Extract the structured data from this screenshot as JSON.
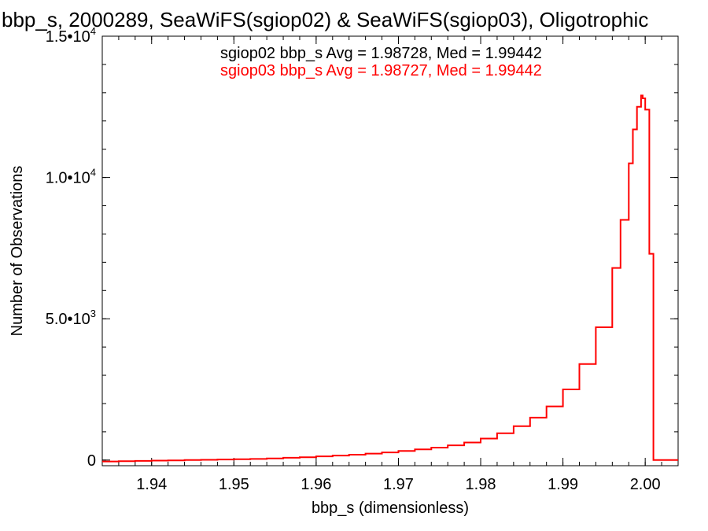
{
  "chart_data": {
    "type": "line",
    "title": "bbp_s, 2000289, SeaWiFS(sgiop02) & SeaWiFS(sgiop03), Oligotrophic",
    "xlabel": "bbp_s (dimensionless)",
    "ylabel": "Number of Observations",
    "xlim": [
      1.934,
      2.004
    ],
    "ylim": [
      -200,
      15000
    ],
    "x_ticks": [
      {
        "value": 1.94,
        "label": "1.94"
      },
      {
        "value": 1.95,
        "label": "1.95"
      },
      {
        "value": 1.96,
        "label": "1.96"
      },
      {
        "value": 1.97,
        "label": "1.97"
      },
      {
        "value": 1.98,
        "label": "1.98"
      },
      {
        "value": 1.99,
        "label": "1.99"
      },
      {
        "value": 2.0,
        "label": "2.00"
      }
    ],
    "y_ticks": [
      {
        "value": 0,
        "mantissa": "0",
        "exponent": ""
      },
      {
        "value": 5000,
        "mantissa": "5.0•10",
        "exponent": "3"
      },
      {
        "value": 10000,
        "mantissa": "1.0•10",
        "exponent": "4"
      },
      {
        "value": 15000,
        "mantissa": "1.5•10",
        "exponent": "4"
      }
    ],
    "annotations": [
      {
        "text": "sgiop02 bbp_s Avg = 1.98728, Med = 1.99442",
        "color": "#000000"
      },
      {
        "text": "sgiop03 bbp_s Avg = 1.98727, Med = 1.99442",
        "color": "#ff0000"
      }
    ],
    "series": [
      {
        "color": "#ff0000",
        "style": "step",
        "points": [
          [
            1.934,
            -50
          ],
          [
            1.936,
            -40
          ],
          [
            1.938,
            -30
          ],
          [
            1.94,
            -20
          ],
          [
            1.942,
            -10
          ],
          [
            1.944,
            0
          ],
          [
            1.946,
            10
          ],
          [
            1.948,
            20
          ],
          [
            1.95,
            30
          ],
          [
            1.952,
            40
          ],
          [
            1.954,
            60
          ],
          [
            1.956,
            80
          ],
          [
            1.958,
            100
          ],
          [
            1.96,
            130
          ],
          [
            1.962,
            160
          ],
          [
            1.964,
            190
          ],
          [
            1.966,
            230
          ],
          [
            1.968,
            270
          ],
          [
            1.97,
            320
          ],
          [
            1.972,
            380
          ],
          [
            1.974,
            440
          ],
          [
            1.976,
            520
          ],
          [
            1.978,
            620
          ],
          [
            1.98,
            760
          ],
          [
            1.982,
            950
          ],
          [
            1.984,
            1200
          ],
          [
            1.986,
            1500
          ],
          [
            1.988,
            1900
          ],
          [
            1.99,
            2500
          ],
          [
            1.992,
            3400
          ],
          [
            1.994,
            4700
          ],
          [
            1.996,
            6800
          ],
          [
            1.997,
            8500
          ],
          [
            1.998,
            10500
          ],
          [
            1.9985,
            11700
          ],
          [
            1.999,
            12500
          ],
          [
            1.9995,
            12900
          ],
          [
            1.9997,
            12800
          ],
          [
            2.0,
            12400
          ],
          [
            2.0005,
            7300
          ],
          [
            2.001,
            0
          ],
          [
            2.004,
            0
          ]
        ]
      }
    ]
  }
}
